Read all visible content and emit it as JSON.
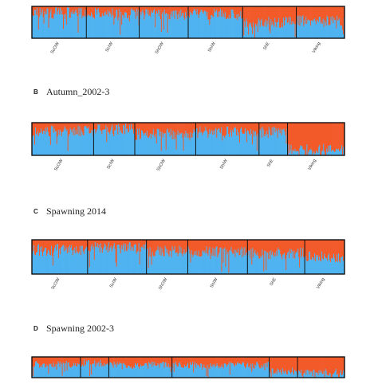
{
  "colors": {
    "cluster1": "#f25a2a",
    "cluster2": "#4fb3f0",
    "frame": "#111111"
  },
  "chart_data": [
    {
      "type": "bar",
      "stacked": true,
      "panel_letter": "",
      "title": "",
      "populations": [
        "ScOW",
        "ScIW",
        "ShOW",
        "ShIW",
        "ShE",
        "Viking"
      ],
      "pop_sizes": [
        70,
        68,
        63,
        70,
        69,
        62
      ],
      "series": [
        {
          "values": [
            0.2,
            0.22,
            0.25,
            0.25,
            0.5,
            0.45
          ]
        },
        {
          "values": [
            0.8,
            0.78,
            0.75,
            0.75,
            0.5,
            0.55
          ]
        }
      ],
      "ylim": [
        0,
        1
      ]
    },
    {
      "type": "bar",
      "stacked": true,
      "panel_letter": "B",
      "title": "Autumn_2002-3",
      "populations": [
        "ScOW",
        "ScIW",
        "ShOW",
        "ShIW",
        "ShE",
        "Viking"
      ],
      "pop_sizes": [
        78,
        52,
        77,
        80,
        36,
        72
      ],
      "series": [
        {
          "values": [
            0.25,
            0.2,
            0.35,
            0.3,
            0.3,
            0.82
          ]
        },
        {
          "values": [
            0.75,
            0.8,
            0.65,
            0.7,
            0.7,
            0.18
          ]
        }
      ],
      "ylim": [
        0,
        1
      ]
    },
    {
      "type": "bar",
      "stacked": true,
      "panel_letter": "C",
      "title": "Spawning 2014",
      "populations": [
        "ScOW",
        "ScIW",
        "ShOW",
        "ShIW",
        "ShE",
        "Viking"
      ],
      "pop_sizes": [
        70,
        74,
        52,
        75,
        72,
        50
      ],
      "series": [
        {
          "values": [
            0.3,
            0.25,
            0.35,
            0.35,
            0.4,
            0.5
          ]
        },
        {
          "values": [
            0.7,
            0.75,
            0.65,
            0.65,
            0.6,
            0.5
          ]
        }
      ],
      "ylim": [
        0,
        1
      ]
    },
    {
      "type": "bar",
      "stacked": true,
      "panel_letter": "D",
      "title": "Spawning 2002-3",
      "populations": [
        "ScOW",
        "ScIW",
        "ShOW",
        "ShIW",
        "ShE",
        "Viking"
      ],
      "pop_sizes": [
        60,
        35,
        78,
        120,
        35,
        58
      ],
      "series": [
        {
          "values": [
            0.35,
            0.3,
            0.4,
            0.4,
            0.7,
            0.75
          ]
        },
        {
          "values": [
            0.65,
            0.7,
            0.6,
            0.6,
            0.3,
            0.25
          ]
        }
      ],
      "ylim": [
        0,
        1
      ]
    }
  ]
}
